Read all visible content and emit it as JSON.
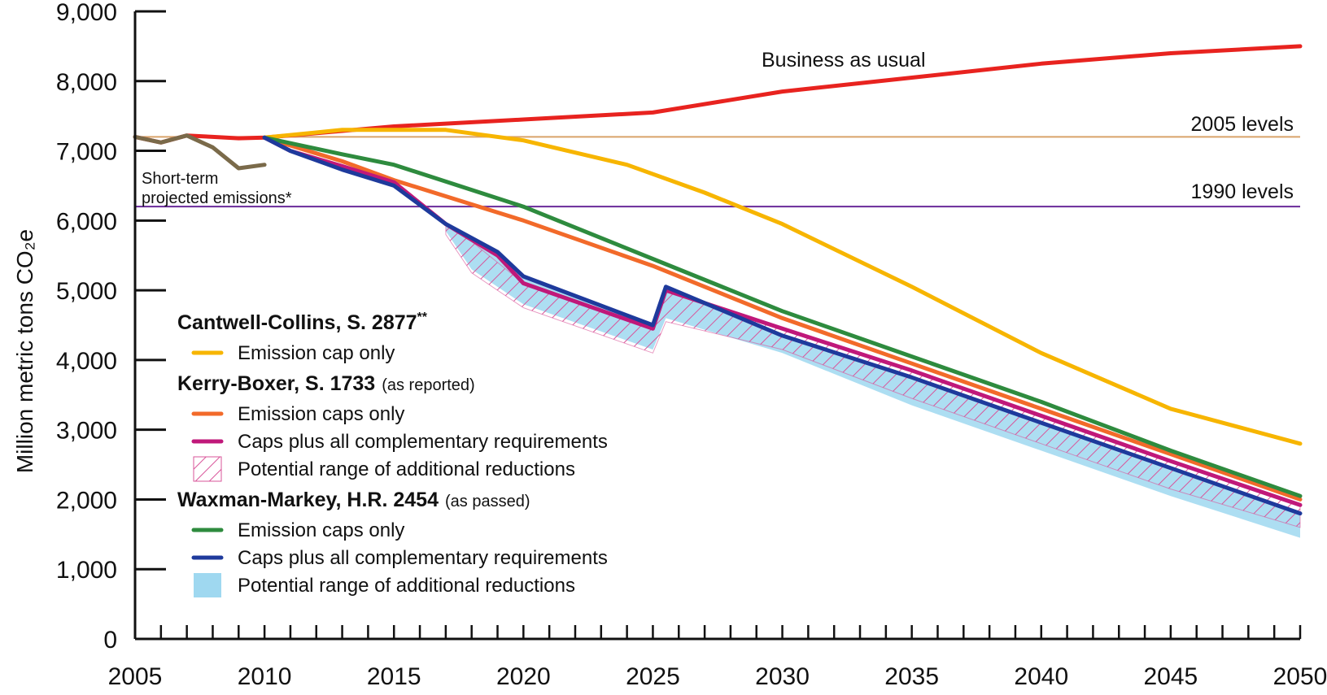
{
  "chart_data": {
    "type": "line",
    "title": "",
    "xlabel": "",
    "ylabel": "Million metric tons CO₂e",
    "xlim": [
      2005,
      2050
    ],
    "ylim": [
      0,
      9000
    ],
    "x_ticks": [
      "2005",
      "2010",
      "2015",
      "2020",
      "2025",
      "2030",
      "2035",
      "2040",
      "2045",
      "2050"
    ],
    "y_ticks": [
      "0",
      "1,000",
      "2,000",
      "3,000",
      "4,000",
      "5,000",
      "6,000",
      "7,000",
      "8,000",
      "9,000"
    ],
    "reference_lines": [
      {
        "name": "2005 levels",
        "value": 7200,
        "color": "#d9a36a"
      },
      {
        "name": "1990 levels",
        "value": 6200,
        "color": "#6a2a9a"
      }
    ],
    "series": [
      {
        "name": "Business as usual",
        "color": "#e8231f",
        "x": [
          2005,
          2006,
          2007,
          2008,
          2009,
          2010,
          2015,
          2020,
          2025,
          2030,
          2035,
          2040,
          2045,
          2050
        ],
        "y": [
          7200,
          7120,
          7220,
          7200,
          7180,
          7190,
          7350,
          7450,
          7550,
          7850,
          8050,
          8250,
          8400,
          8500
        ]
      },
      {
        "name": "Short-term projected emissions*",
        "color": "#7a6a4a",
        "x": [
          2005,
          2006,
          2007,
          2008,
          2009,
          2010
        ],
        "y": [
          7200,
          7120,
          7220,
          7050,
          6750,
          6800
        ]
      },
      {
        "name": "Emission cap only",
        "color": "#f7b500",
        "x": [
          2010,
          2013,
          2017,
          2020,
          2024,
          2027,
          2030,
          2035,
          2040,
          2045,
          2050
        ],
        "y": [
          7190,
          7300,
          7300,
          7150,
          6800,
          6400,
          5950,
          5050,
          4100,
          3300,
          2800
        ]
      },
      {
        "name": "Emission caps only (Kerry-Boxer)",
        "color": "#f26a2a",
        "x": [
          2010,
          2013,
          2015,
          2020,
          2025,
          2030,
          2035,
          2040,
          2045,
          2050
        ],
        "y": [
          7190,
          6850,
          6580,
          6000,
          5350,
          4600,
          3950,
          3300,
          2650,
          2000
        ]
      },
      {
        "name": "Caps plus all complementary requirements (Kerry-Boxer)",
        "color": "#c0187a",
        "x": [
          2010,
          2011,
          2013,
          2015,
          2017,
          2019,
          2020,
          2025,
          2025.5,
          2030,
          2035,
          2040,
          2045,
          2050
        ],
        "y": [
          7190,
          7000,
          6780,
          6550,
          5950,
          5500,
          5100,
          4450,
          5000,
          4450,
          3850,
          3200,
          2550,
          1920
        ]
      },
      {
        "name": "Emission caps only (Waxman-Markey)",
        "color": "#2e8b3e",
        "x": [
          2010,
          2013,
          2015,
          2020,
          2025,
          2030,
          2035,
          2040,
          2045,
          2050
        ],
        "y": [
          7190,
          6950,
          6800,
          6200,
          5450,
          4700,
          4050,
          3400,
          2700,
          2050
        ]
      },
      {
        "name": "Caps plus all complementary requirements (Waxman-Markey)",
        "color": "#1e3a9c",
        "x": [
          2010,
          2011,
          2013,
          2015,
          2017,
          2019,
          2020,
          2025,
          2025.5,
          2030,
          2035,
          2040,
          2045,
          2050
        ],
        "y": [
          7190,
          7000,
          6730,
          6500,
          5950,
          5550,
          5200,
          4500,
          5050,
          4350,
          3750,
          3100,
          2450,
          1800
        ]
      }
    ],
    "ranges": [
      {
        "name": "Potential range of additional reductions (Waxman-Markey)",
        "color": "#9fd8f0",
        "x": [
          2017,
          2018,
          2020,
          2025,
          2025.5,
          2030,
          2035,
          2040,
          2045,
          2050
        ],
        "upper": [
          5950,
          5750,
          5200,
          4500,
          5050,
          4350,
          3750,
          3100,
          2450,
          1800
        ],
        "lower": [
          5850,
          5300,
          4800,
          4150,
          4600,
          4100,
          3350,
          2700,
          2050,
          1450
        ]
      },
      {
        "name": "Potential range of additional reductions (Kerry-Boxer)",
        "color": "#d9559a",
        "x": [
          2017,
          2018,
          2020,
          2025,
          2025.5,
          2030,
          2035,
          2040,
          2045,
          2050
        ],
        "upper": [
          5950,
          5700,
          5100,
          4450,
          5000,
          4450,
          3850,
          3200,
          2550,
          1920
        ],
        "lower": [
          5800,
          5250,
          4750,
          4100,
          4550,
          4150,
          3450,
          2800,
          2150,
          1600
        ]
      }
    ],
    "annotations": {
      "bau": "Business as usual",
      "short_term_1": "Short-term",
      "short_term_2": "projected emissions*",
      "levels_2005": "2005 levels",
      "levels_1990": "1990 levels"
    },
    "legend": {
      "placement": "bottom-left",
      "groups": [
        {
          "heading": "Cantwell-Collins, S. 2877",
          "heading_sup": "**",
          "note": "",
          "items": [
            {
              "label": "Emission cap only",
              "kind": "line",
              "color": "#f7b500"
            }
          ]
        },
        {
          "heading": "Kerry-Boxer, S. 1733",
          "heading_sup": "",
          "note": "(as reported)",
          "items": [
            {
              "label": "Emission caps only",
              "kind": "line",
              "color": "#f26a2a"
            },
            {
              "label": "Caps plus all complementary requirements",
              "kind": "line",
              "color": "#c0187a"
            },
            {
              "label": "Potential range of additional reductions",
              "kind": "hatch",
              "color": "#d9559a"
            }
          ]
        },
        {
          "heading": "Waxman-Markey, H.R. 2454",
          "heading_sup": "",
          "note": "(as passed)",
          "items": [
            {
              "label": "Emission caps only",
              "kind": "line",
              "color": "#2e8b3e"
            },
            {
              "label": "Caps plus all complementary requirements",
              "kind": "line",
              "color": "#1e3a9c"
            },
            {
              "label": "Potential range of additional reductions",
              "kind": "fill",
              "color": "#9fd8f0"
            }
          ]
        }
      ]
    },
    "grid": false
  }
}
